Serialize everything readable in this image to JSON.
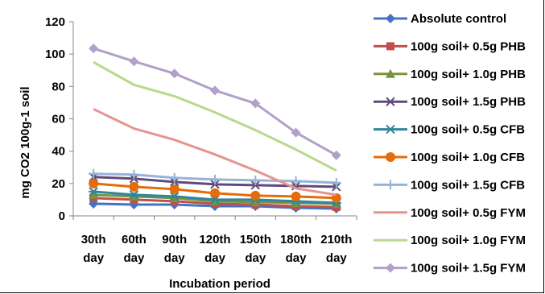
{
  "chart_data": {
    "type": "line",
    "title": "",
    "xlabel": "Incubation period",
    "ylabel": "mg CO2 100g-1 soil",
    "ylim": [
      0,
      120
    ],
    "yticks": [
      0,
      20,
      40,
      60,
      80,
      100,
      120
    ],
    "grid": false,
    "legend_position": "right",
    "categories": [
      [
        "30th",
        "day"
      ],
      [
        "60th",
        "day"
      ],
      [
        "90th",
        "day"
      ],
      [
        "120th",
        "day"
      ],
      [
        "150th",
        "day"
      ],
      [
        "180th",
        "day"
      ],
      [
        "210th",
        "day"
      ]
    ],
    "series": [
      {
        "name": "Absolute control",
        "color": "#4472C4",
        "marker": "diamond",
        "values": [
          7.5,
          7,
          7,
          6,
          6,
          5,
          4.5
        ]
      },
      {
        "name": "100g soil+ 0.5g PHB",
        "color": "#C0504D",
        "marker": "square",
        "values": [
          11,
          10,
          9,
          7.5,
          7,
          6,
          5.5
        ]
      },
      {
        "name": "100g soil+ 1.0g PHB",
        "color": "#77933C",
        "marker": "triangle",
        "values": [
          13,
          12,
          11,
          9,
          8.5,
          8,
          7.5
        ]
      },
      {
        "name": "100g soil+ 1.5g PHB",
        "color": "#604A7B",
        "marker": "x",
        "values": [
          24,
          23,
          21,
          19.5,
          19,
          18.5,
          18
        ]
      },
      {
        "name": "100g soil+ 0.5g CFB",
        "color": "#31859C",
        "marker": "star",
        "values": [
          15,
          13,
          12,
          10,
          10,
          9,
          8
        ]
      },
      {
        "name": "100g soil+ 1.0g CFB",
        "color": "#E46C0A",
        "marker": "circle",
        "values": [
          20,
          18,
          16.5,
          14,
          12.5,
          12,
          11
        ]
      },
      {
        "name": "100g soil+ 1.5g CFB",
        "color": "#95B3D7",
        "marker": "plus",
        "values": [
          26,
          25.5,
          23.5,
          22.5,
          22,
          21.5,
          20.5
        ]
      },
      {
        "name": "100g soil+ 0.5g FYM",
        "color": "#E6948F",
        "marker": "none",
        "values": [
          66,
          54,
          47,
          38,
          28,
          17,
          13
        ]
      },
      {
        "name": "100g soil+ 1.0g FYM",
        "color": "#B7D98A",
        "marker": "none",
        "values": [
          95,
          81,
          74,
          64,
          53,
          41,
          28
        ]
      },
      {
        "name": "100g soil+ 1.5g FYM",
        "color": "#B1A0C7",
        "marker": "diamond",
        "values": [
          103.5,
          95.5,
          88,
          77.5,
          69.5,
          51.5,
          37.5
        ]
      }
    ]
  }
}
